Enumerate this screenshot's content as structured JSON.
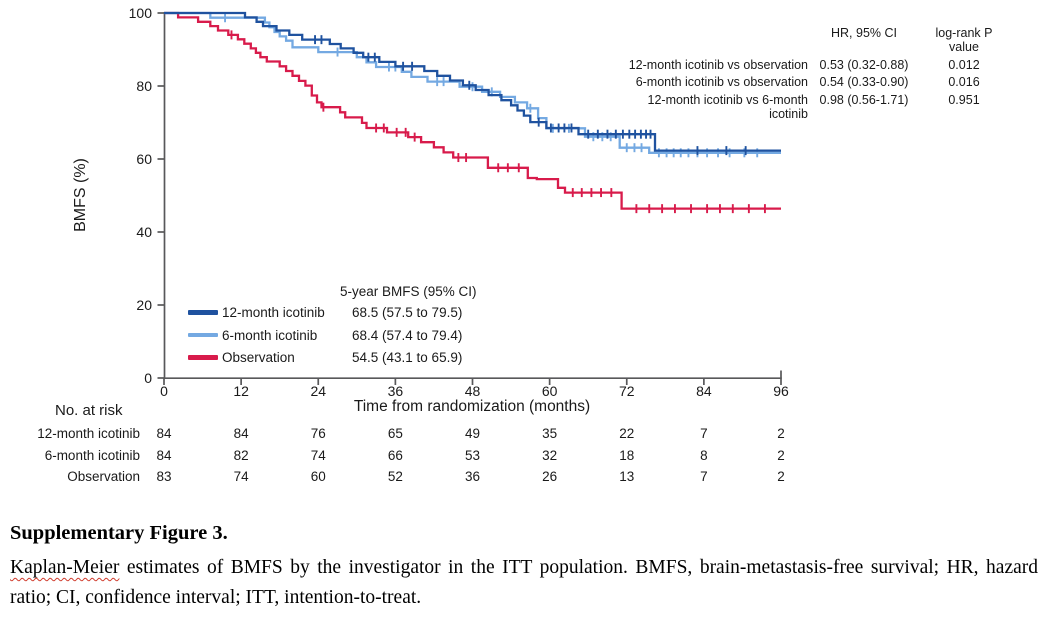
{
  "chart_data": {
    "type": "line",
    "subtype": "kaplan-meier-step",
    "xlabel": "Time from randomization (months)",
    "ylabel": "BMFS (%)",
    "xlim": [
      0,
      96
    ],
    "ylim": [
      0,
      100
    ],
    "x_ticks": [
      0,
      12,
      24,
      36,
      48,
      60,
      72,
      84,
      96
    ],
    "y_ticks": [
      0,
      20,
      40,
      60,
      80,
      100
    ],
    "grid": false,
    "legend_position": "inside-lower-left",
    "series": [
      {
        "name": "Observation",
        "color": "#d81b4b",
        "points": [
          [
            0,
            100
          ],
          [
            2.2,
            98.8
          ],
          [
            5.3,
            97.6
          ],
          [
            7.2,
            96.4
          ],
          [
            8.4,
            95.2
          ],
          [
            10,
            94.0
          ],
          [
            11.5,
            92.8
          ],
          [
            12.5,
            91.6
          ],
          [
            13.5,
            90.3
          ],
          [
            14.3,
            89.1
          ],
          [
            15,
            87.9
          ],
          [
            16,
            86.7
          ],
          [
            18,
            85.4
          ],
          [
            19,
            84.1
          ],
          [
            20,
            82.8
          ],
          [
            21,
            81.4
          ],
          [
            22,
            80.1
          ],
          [
            23,
            77.4
          ],
          [
            23.8,
            75.5
          ],
          [
            24.5,
            74.2
          ],
          [
            27.4,
            72.8
          ],
          [
            28.2,
            71.4
          ],
          [
            30.8,
            69.9
          ],
          [
            31.5,
            68.5
          ],
          [
            34.7,
            67.3
          ],
          [
            38,
            66.0
          ],
          [
            40,
            64.6
          ],
          [
            42,
            63.2
          ],
          [
            43.5,
            61.8
          ],
          [
            45,
            60.4
          ],
          [
            50.4,
            57.6
          ],
          [
            56.6,
            54.8
          ],
          [
            58,
            54.5
          ],
          [
            61.3,
            52.1
          ],
          [
            62.4,
            50.8
          ],
          [
            71.2,
            46.4
          ],
          [
            96,
            46.4
          ]
        ],
        "censors": [
          10.5,
          24.8,
          33,
          34.2,
          36.2,
          37.6,
          39,
          45.8,
          47,
          52,
          53.5,
          55.2,
          63.6,
          65,
          66.5,
          68,
          69.6,
          73.5,
          75.5,
          77.5,
          79.5,
          82,
          84.5,
          86.5,
          88.5,
          91,
          93.5
        ]
      },
      {
        "name": "6-month icotinib",
        "color": "#74a9e2",
        "points": [
          [
            0,
            100
          ],
          [
            7.2,
            98.7
          ],
          [
            15.7,
            97.4
          ],
          [
            16.4,
            96.1
          ],
          [
            17.2,
            94.8
          ],
          [
            18,
            93.6
          ],
          [
            19,
            92.4
          ],
          [
            20,
            90.6
          ],
          [
            24,
            89.3
          ],
          [
            30,
            87.9
          ],
          [
            31.5,
            86.5
          ],
          [
            33,
            85.2
          ],
          [
            37,
            83.9
          ],
          [
            38.5,
            82.5
          ],
          [
            41,
            81.2
          ],
          [
            46,
            79.8
          ],
          [
            49.5,
            78.4
          ],
          [
            52.3,
            77.0
          ],
          [
            54.6,
            75.5
          ],
          [
            56.5,
            73.9
          ],
          [
            58.2,
            71.2
          ],
          [
            59.5,
            68.4
          ],
          [
            65.5,
            66.1
          ],
          [
            70.9,
            63.1
          ],
          [
            75.5,
            61.7
          ],
          [
            96,
            61.7
          ]
        ],
        "censors": [
          9.5,
          27,
          35,
          36,
          42.5,
          43.5,
          48,
          51,
          57,
          60.5,
          63,
          66.8,
          68.2,
          69.5,
          72,
          73.2,
          74.3,
          77,
          78.2,
          79.3,
          80.4,
          81.6,
          83,
          84.5,
          86.2,
          88,
          90.3,
          92.3
        ]
      },
      {
        "name": "12-month icotinib",
        "color": "#1f529f",
        "points": [
          [
            0,
            100
          ],
          [
            12.6,
            98.8
          ],
          [
            14.4,
            97.6
          ],
          [
            15.4,
            96.4
          ],
          [
            17.5,
            95.2
          ],
          [
            19.5,
            94.0
          ],
          [
            21.5,
            92.7
          ],
          [
            25.8,
            91.5
          ],
          [
            27.5,
            90.3
          ],
          [
            29.5,
            89.1
          ],
          [
            31,
            87.9
          ],
          [
            33.5,
            86.6
          ],
          [
            36,
            85.4
          ],
          [
            40.5,
            84.1
          ],
          [
            42.5,
            82.8
          ],
          [
            44.5,
            81.5
          ],
          [
            46.5,
            80.2
          ],
          [
            48.5,
            78.9
          ],
          [
            50.5,
            77.5
          ],
          [
            52.5,
            76.1
          ],
          [
            54,
            74.7
          ],
          [
            55,
            73.3
          ],
          [
            56,
            71.9
          ],
          [
            57,
            70.1
          ],
          [
            59.5,
            68.5
          ],
          [
            64.5,
            66.8
          ],
          [
            76.4,
            62.3
          ],
          [
            96,
            62.3
          ]
        ],
        "censors": [
          23.5,
          24.5,
          31.8,
          32.8,
          37.2,
          38.6,
          47.5,
          58.3,
          60.2,
          61.4,
          62.3,
          63.4,
          66,
          67.5,
          69,
          70.3,
          71.4,
          72.4,
          73.3,
          74.2,
          75,
          75.7,
          83,
          87.5,
          90.5
        ]
      }
    ]
  },
  "stats_table": {
    "header_hr": "HR, 95% CI",
    "header_p": "log-rank P value",
    "rows": [
      {
        "comparison": "12-month icotinib vs observation",
        "hr": "0.53 (0.32-0.88)",
        "p": "0.012"
      },
      {
        "comparison": "6-month icotinib vs observation",
        "hr": "0.54 (0.33-0.90)",
        "p": "0.016"
      },
      {
        "comparison": "12-month icotinib vs 6-month icotinib",
        "hr": "0.98 (0.56-1.71)",
        "p": "0.951"
      }
    ]
  },
  "legend": {
    "title": "5-year BMFS (95% CI)",
    "rows": [
      {
        "label": "12-month icotinib",
        "value": "68.5 (57.5 to 79.5)",
        "color": "#1f529f"
      },
      {
        "label": "6-month icotinib",
        "value": "68.4 (57.4 to 79.4)",
        "color": "#74a9e2"
      },
      {
        "label": "Observation",
        "value": "54.5 (43.1 to 65.9)",
        "color": "#d81b4b"
      }
    ]
  },
  "risk_table": {
    "title": "No. at risk",
    "rows": [
      {
        "label": "12-month icotinib",
        "values": [
          84,
          84,
          76,
          65,
          49,
          35,
          22,
          7,
          2
        ]
      },
      {
        "label": "6-month icotinib",
        "values": [
          84,
          82,
          74,
          66,
          53,
          32,
          18,
          8,
          2
        ]
      },
      {
        "label": "Observation",
        "values": [
          83,
          74,
          60,
          52,
          36,
          26,
          13,
          7,
          2
        ]
      }
    ]
  },
  "caption": {
    "title": "Supplementary Figure 3.",
    "body_spellcheck_word": "Kaplan-Meier",
    "body_rest": " estimates of BMFS by the investigator in the ITT population. BMFS, brain-metastasis-free survival; HR, hazard ratio; CI, confidence interval; ITT, intention-to-treat."
  },
  "colors": {
    "axis": "#58585a",
    "text": "#1a1a1a",
    "spellcheck_underline": "#d03a2b"
  }
}
